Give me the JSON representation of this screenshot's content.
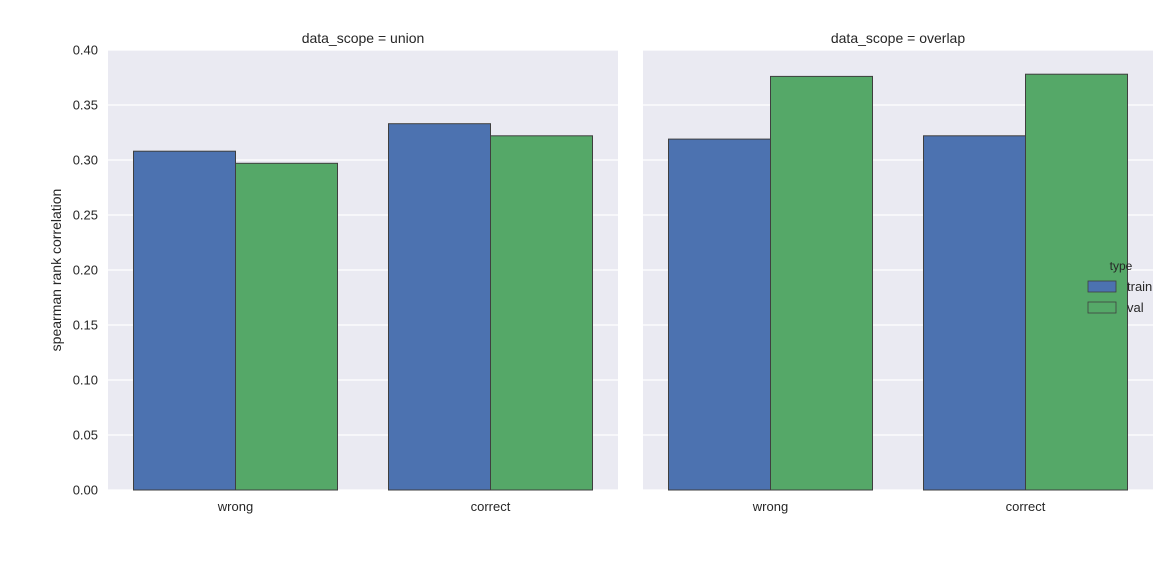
{
  "chart_data": {
    "type": "bar",
    "ylabel": "spearman rank correlation",
    "ylim": [
      0,
      0.4
    ],
    "yticks": [
      0.0,
      0.05,
      0.1,
      0.15,
      0.2,
      0.25,
      0.3,
      0.35,
      0.4
    ],
    "ytick_labels": [
      "0.00",
      "0.05",
      "0.10",
      "0.15",
      "0.20",
      "0.25",
      "0.30",
      "0.35",
      "0.40"
    ],
    "grid": true,
    "legend": {
      "title": "type",
      "placement": "right",
      "entries": [
        {
          "name": "train",
          "color": "#4c72b0"
        },
        {
          "name": "val",
          "color": "#55a868"
        }
      ]
    },
    "facets": [
      {
        "title": "data_scope = union",
        "categories": [
          "wrong",
          "correct"
        ],
        "series": [
          {
            "name": "train",
            "values": [
              0.308,
              0.333
            ]
          },
          {
            "name": "val",
            "values": [
              0.297,
              0.322
            ]
          }
        ]
      },
      {
        "title": "data_scope = overlap",
        "categories": [
          "wrong",
          "correct"
        ],
        "series": [
          {
            "name": "train",
            "values": [
              0.319,
              0.322
            ]
          },
          {
            "name": "val",
            "values": [
              0.376,
              0.378
            ]
          }
        ]
      }
    ]
  }
}
